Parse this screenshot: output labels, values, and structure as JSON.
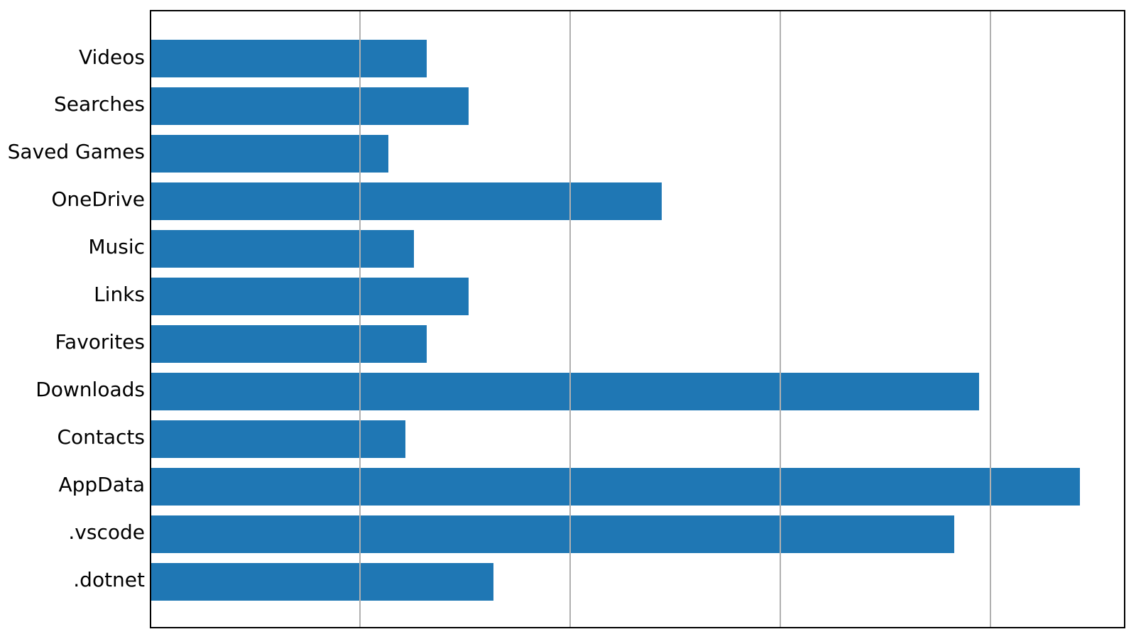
{
  "chart_data": {
    "type": "bar",
    "orientation": "horizontal",
    "title": "",
    "xlabel": "",
    "ylabel": "",
    "categories_top_to_bottom": [
      "Videos",
      "Searches",
      "Saved Games",
      "OneDrive",
      "Music",
      "Links",
      "Favorites",
      "Downloads",
      "Contacts",
      "AppData",
      ".vscode",
      ".dotnet"
    ],
    "values": [
      1.31,
      1.51,
      1.13,
      2.43,
      1.25,
      1.51,
      1.31,
      3.94,
      1.21,
      4.42,
      3.82,
      1.63
    ],
    "value_units": "relative units: x-axis gridline spacing = 1 (no tick labels visible in image)",
    "xlim": [
      0,
      4.64
    ],
    "x_gridlines_at": [
      1,
      2,
      3,
      4
    ],
    "x_tick_labels": [],
    "y_tick_labels_visible": true,
    "grid": "vertical gridlines only, drawn on top of bars",
    "legend": "none",
    "bar_color": "#1f77b4",
    "gridline_color": "#b0b0b0",
    "axis_color": "#000000",
    "background_color": "#ffffff"
  }
}
